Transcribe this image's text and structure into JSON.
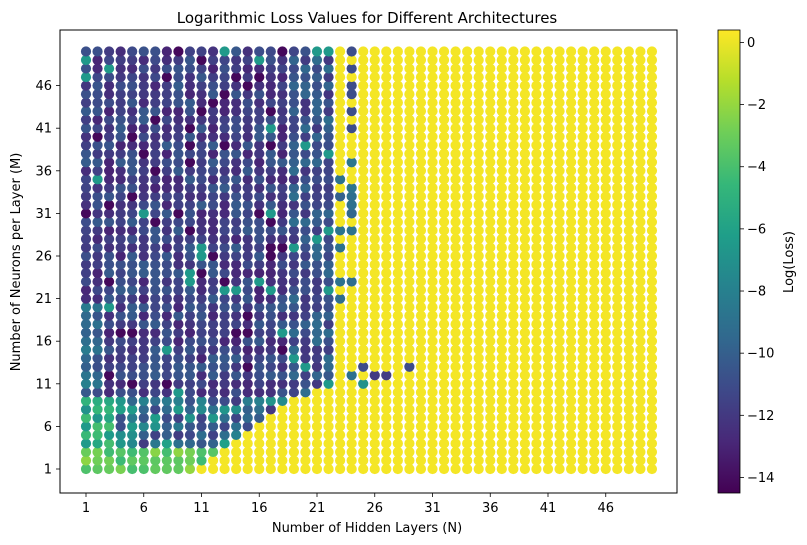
{
  "chart_data": {
    "type": "scatter",
    "title": "Logarithmic Loss Values for Different Architectures",
    "xlabel": "Number of Hidden Layers (N)",
    "ylabel": "Number of Neurons per Layer (M)",
    "colorbar_label": "Log(Loss)",
    "colormap": "viridis",
    "color_range": [
      -14.5,
      0.4
    ],
    "colorbar_ticks": [
      "0",
      "−2",
      "−4",
      "−6",
      "−8",
      "−10",
      "−12",
      "−14"
    ],
    "colorbar_tick_values": [
      0,
      -2,
      -4,
      -6,
      -8,
      -10,
      -12,
      -14
    ],
    "x_range": [
      1,
      50
    ],
    "y_range": [
      1,
      50
    ],
    "xticks": [
      "1",
      "6",
      "11",
      "16",
      "21",
      "26",
      "31",
      "36",
      "41",
      "46"
    ],
    "xtick_values": [
      1,
      6,
      11,
      16,
      21,
      26,
      31,
      36,
      41,
      46
    ],
    "yticks": [
      "1",
      "6",
      "11",
      "16",
      "21",
      "26",
      "31",
      "36",
      "41",
      "46"
    ],
    "ytick_values": [
      1,
      6,
      11,
      16,
      21,
      26,
      31,
      36,
      41,
      46
    ],
    "points_grid": "N = 1..50, M = 1..50 (one marker per architecture)",
    "value_summary": {
      "trained_region": "N 1-22, M 6-50: log(loss) mostly -10 to -13 (dark blue/purple), scattered -14",
      "lower_band": "N 1-12, M 1-10: log(loss) -2 to -7 (green/teal)",
      "transition": "N 22-24: mixed values; isolated low-loss points at N 23-29, M 11-13",
      "diverged_region": "N 23-50: log(loss) about 0 (yellow)"
    },
    "grid": false,
    "legend": "none"
  }
}
